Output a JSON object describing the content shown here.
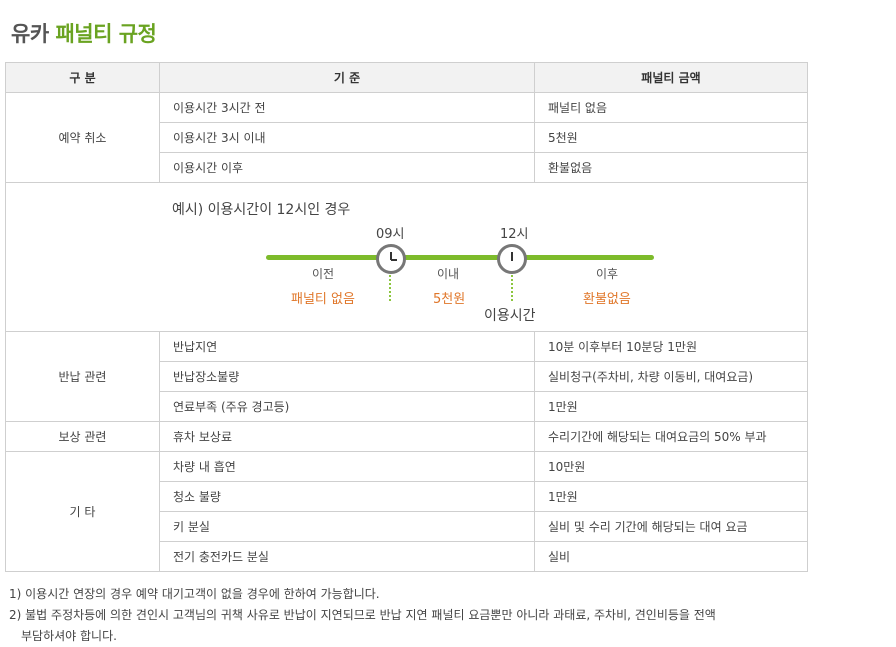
{
  "title": {
    "part1": "유카",
    "part2": "패널티 규정"
  },
  "table": {
    "headers": [
      "구 분",
      "기 준",
      "패널티 금액"
    ],
    "groups": [
      {
        "category": "예약 취소",
        "rows": [
          {
            "criterion": "이용시간 3시간 전",
            "amount": "패널티 없음"
          },
          {
            "criterion": "이용시간 3시 이내",
            "amount": "5천원"
          },
          {
            "criterion": "이용시간 이후",
            "amount": "환불없음"
          }
        ]
      },
      {
        "category": "반납 관련",
        "rows": [
          {
            "criterion": "반납지연",
            "amount": "10분 이후부터 10분당 1만원"
          },
          {
            "criterion": "반납장소불량",
            "amount": "실비청구(주차비, 차량 이동비, 대여요금)"
          },
          {
            "criterion": "연료부족 (주유 경고등)",
            "amount": "1만원"
          }
        ]
      },
      {
        "category": "보상 관련",
        "rows": [
          {
            "criterion": "휴차 보상료",
            "amount": "수리기간에 해당되는 대여요금의 50% 부과"
          }
        ]
      },
      {
        "category": "기 타",
        "rows": [
          {
            "criterion": "차량 내 흡연",
            "amount": "10만원"
          },
          {
            "criterion": "청소 불량",
            "amount": "1만원"
          },
          {
            "criterion": "키 분실",
            "amount": "실비 및 수리 기간에 해당되는 대여 요금"
          },
          {
            "criterion": "전기 충전카드 분실",
            "amount": "실비"
          }
        ]
      }
    ]
  },
  "example": {
    "caption": "예시) 이용시간이 12시인 경우",
    "time1": "09시",
    "time2": "12시",
    "seg_before": "이전",
    "seg_within": "이내",
    "seg_after": "이후",
    "pen_before": "패널티 없음",
    "pen_within": "5천원",
    "pen_after": "환불없음",
    "use_time": "이용시간"
  },
  "colors": {
    "accent_green": "#6aa321",
    "line_green": "#7dbb2b",
    "orange": "#e0772a"
  },
  "notes": [
    "1) 이용시간 연장의 경우 예약 대기고객이 없을 경우에 한하여 가능합니다.",
    "2) 불법 주정차등에 의한 견인시 고객님의 귀책 사유로 반납이 지연되므로 반납 지연 패널티 요금뿐만 아니라 과태료, 주차비, 견인비등을 전액",
    "부담하셔야 합니다."
  ]
}
